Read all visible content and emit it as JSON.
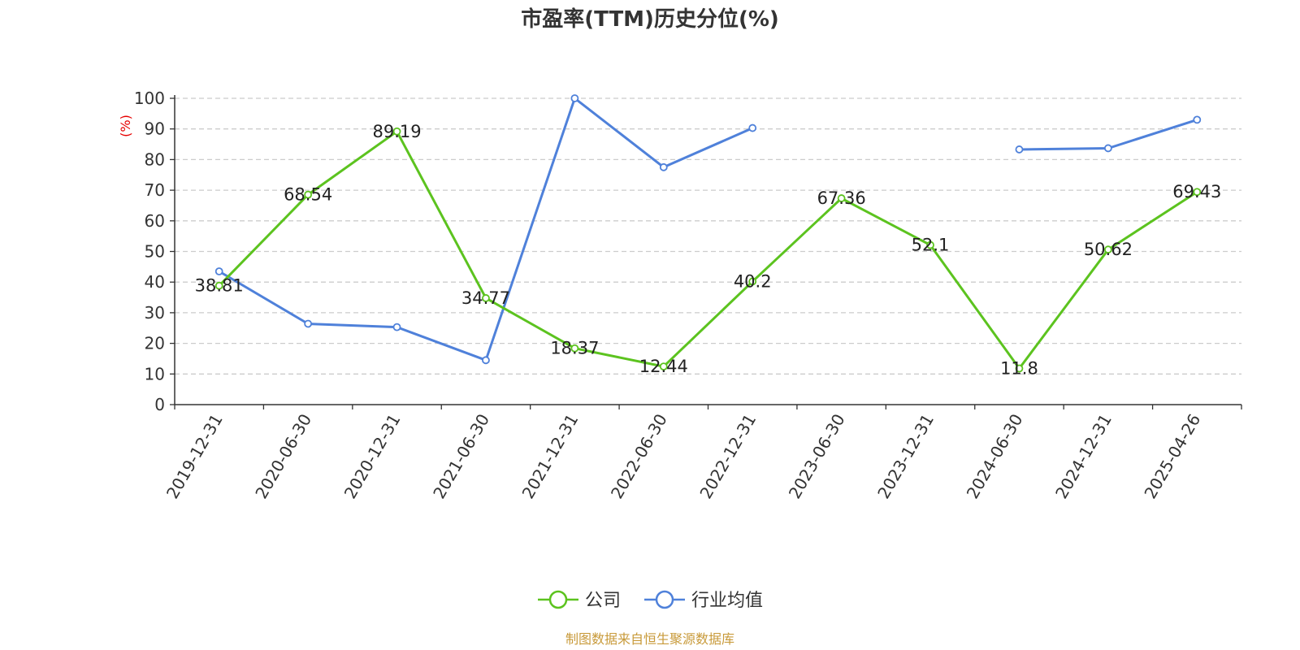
{
  "chart_data": {
    "type": "line",
    "title": "市盈率(TTM)历史分位(%)",
    "ylabel": "(%)",
    "ylim": [
      0,
      100
    ],
    "yticks": [
      0,
      10,
      20,
      30,
      40,
      50,
      60,
      70,
      80,
      90,
      100
    ],
    "grid": true,
    "legend_position": "bottom",
    "categories": [
      "2019-12-31",
      "2020-06-30",
      "2020-12-31",
      "2021-06-30",
      "2021-12-31",
      "2022-06-30",
      "2022-12-31",
      "2023-06-30",
      "2023-12-31",
      "2024-06-30",
      "2024-12-31",
      "2025-04-26"
    ],
    "series": [
      {
        "name": "公司",
        "color": "#5cc31f",
        "show_labels": true,
        "values": [
          38.81,
          68.54,
          89.19,
          34.77,
          18.37,
          12.44,
          40.2,
          67.36,
          52.1,
          11.8,
          50.62,
          69.43
        ]
      },
      {
        "name": "行业均值",
        "color": "#4f81da",
        "show_labels": false,
        "values": [
          43.5,
          26.4,
          25.3,
          14.5,
          100,
          77.5,
          90.3,
          null,
          null,
          83.3,
          83.7,
          93
        ]
      }
    ]
  },
  "source": "制图数据来自恒生聚源数据库",
  "colors": {
    "unit_label": "#e60000",
    "source_text": "#c89a3a",
    "grid": "#cccccc",
    "axis": "#333333"
  }
}
